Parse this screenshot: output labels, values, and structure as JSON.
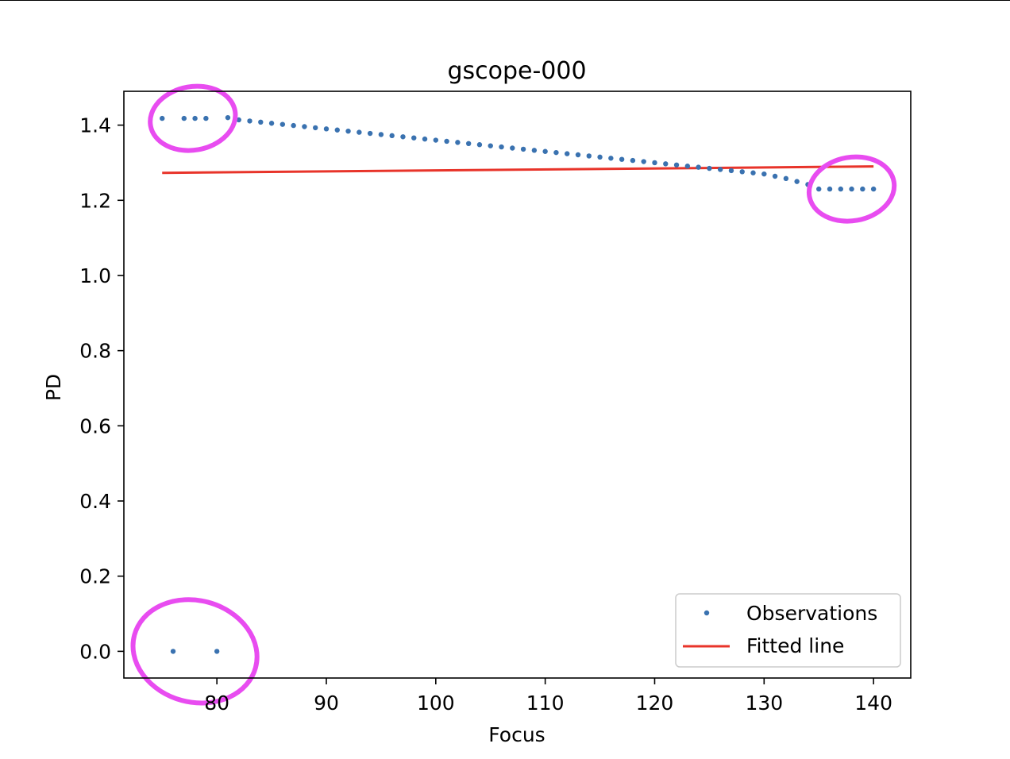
{
  "chart_data": {
    "type": "scatter",
    "title": "gscope-000",
    "xlabel": "Focus",
    "ylabel": "PD",
    "xlim": [
      71.5,
      143.4
    ],
    "ylim": [
      -0.071,
      1.49
    ],
    "xticks": [
      80,
      90,
      100,
      110,
      120,
      130,
      140
    ],
    "xtick_labels": [
      "80",
      "90",
      "100",
      "110",
      "120",
      "130",
      "140"
    ],
    "yticks": [
      0.0,
      0.2,
      0.4,
      0.6,
      0.8,
      1.0,
      1.2,
      1.4
    ],
    "ytick_labels": [
      "0.0",
      "0.2",
      "0.4",
      "0.6",
      "0.8",
      "1.0",
      "1.2",
      "1.4"
    ],
    "grid": false,
    "legend_position": "lower-right",
    "legend": [
      "Observations",
      "Fitted line"
    ],
    "series": [
      {
        "name": "Observations",
        "kind": "points",
        "color": "#3a72b0",
        "points": [
          [
            75,
            1.418
          ],
          [
            76,
            0.0
          ],
          [
            77,
            1.418
          ],
          [
            78,
            1.418
          ],
          [
            79,
            1.418
          ],
          [
            80,
            0.0
          ],
          [
            81,
            1.42
          ],
          [
            82,
            1.414
          ],
          [
            83,
            1.411
          ],
          [
            84,
            1.408
          ],
          [
            85,
            1.405
          ],
          [
            86,
            1.402
          ],
          [
            87,
            1.399
          ],
          [
            88,
            1.396
          ],
          [
            89,
            1.393
          ],
          [
            90,
            1.39
          ],
          [
            91,
            1.387
          ],
          [
            92,
            1.384
          ],
          [
            93,
            1.381
          ],
          [
            94,
            1.378
          ],
          [
            95,
            1.375
          ],
          [
            96,
            1.372
          ],
          [
            97,
            1.369
          ],
          [
            98,
            1.366
          ],
          [
            99,
            1.363
          ],
          [
            100,
            1.36
          ],
          [
            101,
            1.357
          ],
          [
            102,
            1.354
          ],
          [
            103,
            1.351
          ],
          [
            104,
            1.348
          ],
          [
            105,
            1.345
          ],
          [
            106,
            1.342
          ],
          [
            107,
            1.339
          ],
          [
            108,
            1.336
          ],
          [
            109,
            1.333
          ],
          [
            110,
            1.33
          ],
          [
            111,
            1.327
          ],
          [
            112,
            1.324
          ],
          [
            113,
            1.321
          ],
          [
            114,
            1.318
          ],
          [
            115,
            1.315
          ],
          [
            116,
            1.312
          ],
          [
            117,
            1.309
          ],
          [
            118,
            1.306
          ],
          [
            119,
            1.303
          ],
          [
            120,
            1.3
          ],
          [
            121,
            1.297
          ],
          [
            122,
            1.294
          ],
          [
            123,
            1.291
          ],
          [
            124,
            1.288
          ],
          [
            125,
            1.285
          ],
          [
            126,
            1.282
          ],
          [
            127,
            1.279
          ],
          [
            128,
            1.276
          ],
          [
            129,
            1.273
          ],
          [
            130,
            1.27
          ],
          [
            131,
            1.264
          ],
          [
            132,
            1.258
          ],
          [
            133,
            1.25
          ],
          [
            134,
            1.242
          ],
          [
            135,
            1.23
          ],
          [
            136,
            1.23
          ],
          [
            137,
            1.23
          ],
          [
            138,
            1.23
          ],
          [
            139,
            1.23
          ],
          [
            140,
            1.23
          ]
        ]
      },
      {
        "name": "Fitted line",
        "kind": "line",
        "color": "#e8342a",
        "x": [
          75,
          140
        ],
        "y": [
          1.273,
          1.29
        ]
      }
    ],
    "annotations": {
      "color": "#e84cf0",
      "highlight_ellipses": [
        {
          "x": 77.8,
          "y": 1.418,
          "label": ""
        },
        {
          "x": 138.0,
          "y": 1.23,
          "label": ""
        },
        {
          "x": 78.0,
          "y": 0.0,
          "label": ""
        }
      ]
    }
  }
}
